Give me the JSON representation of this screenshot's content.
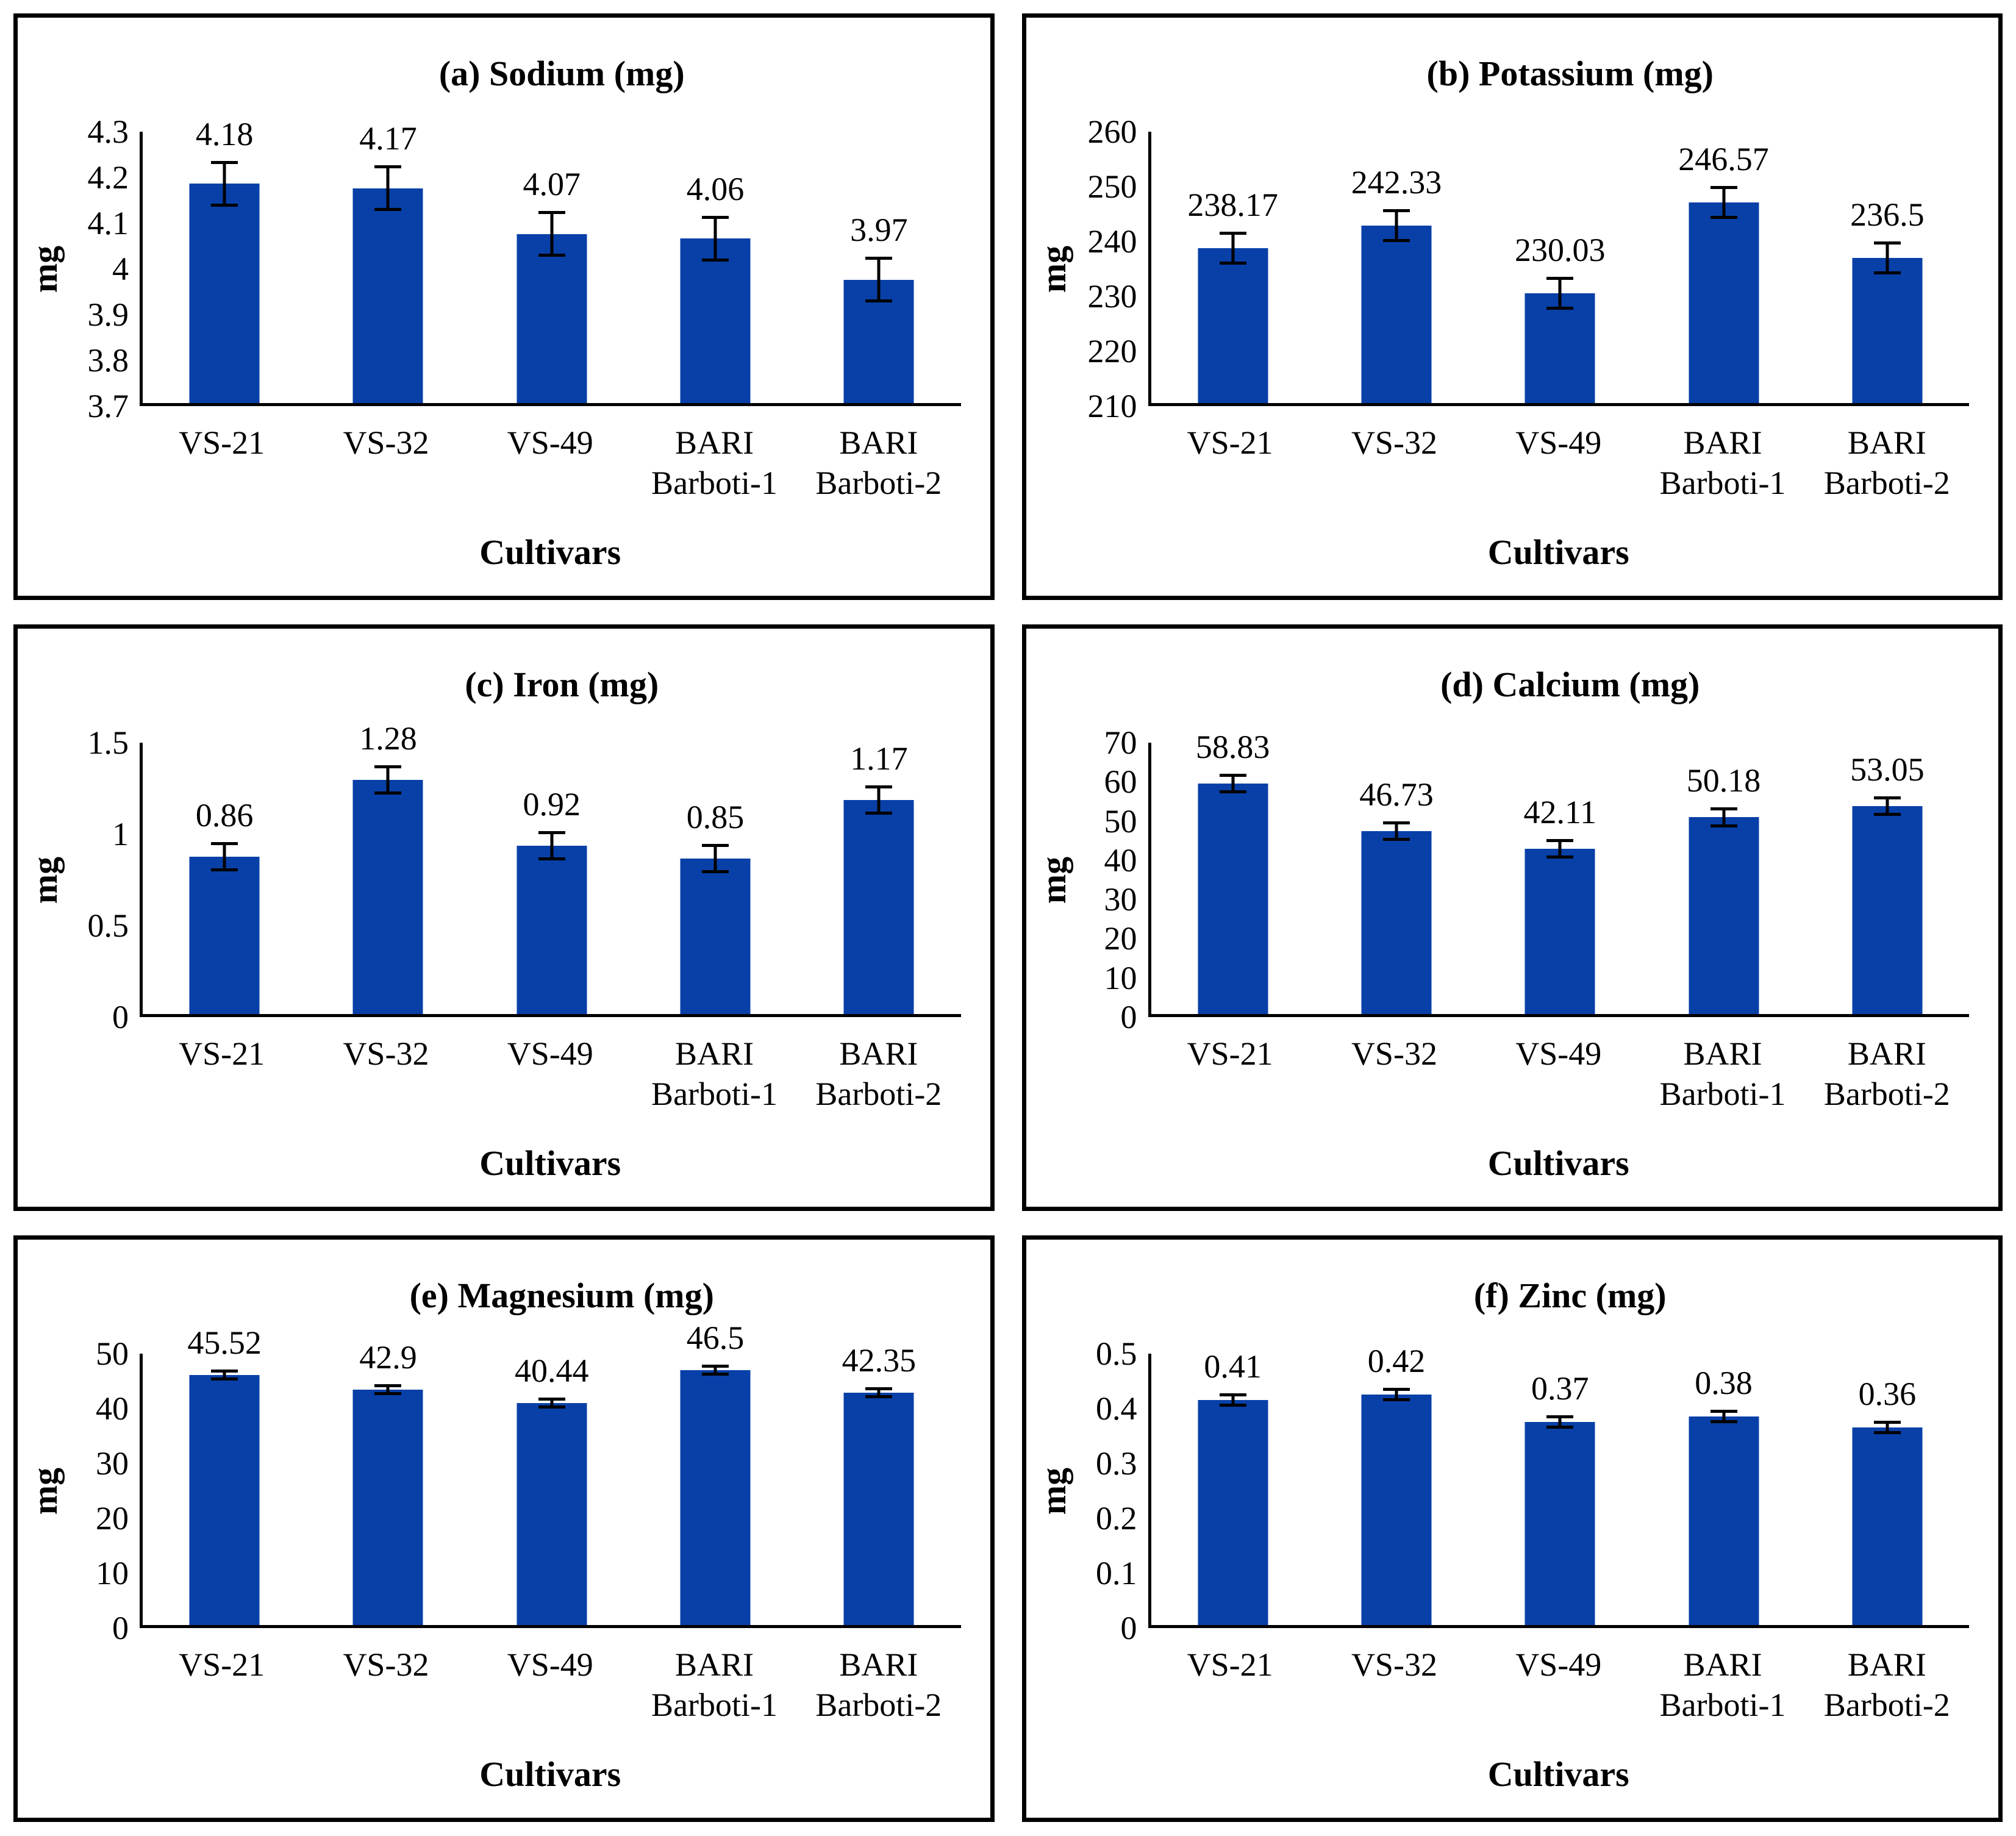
{
  "bar_color": "#0840A8",
  "axis_color": "#000000",
  "text_color": "#000000",
  "panel_border_color": "#000000",
  "chart_data": [
    {
      "type": "bar",
      "panel": "a",
      "title": "(a) Sodium (mg)",
      "ylabel": "mg",
      "xlabel": "Cultivars",
      "categories": [
        "VS-21",
        "VS-32",
        "VS-49",
        "BARI\nBarboti-1",
        "BARI\nBarboti-2"
      ],
      "values": [
        4.18,
        4.17,
        4.07,
        4.06,
        3.97
      ],
      "labels": [
        "4.18",
        "4.17",
        "4.07",
        "4.06",
        "3.97"
      ],
      "error": 0.05,
      "ylim": [
        3.7,
        4.3
      ],
      "yticks": [
        "4.3",
        "4.2",
        "4.1",
        "4",
        "3.9",
        "3.8",
        "3.7"
      ],
      "grid": false,
      "legend": false
    },
    {
      "type": "bar",
      "panel": "b",
      "title": "(b) Potassium (mg)",
      "ylabel": "mg",
      "xlabel": "Cultivars",
      "categories": [
        "VS-21",
        "VS-32",
        "VS-49",
        "BARI\nBarboti-1",
        "BARI\nBarboti-2"
      ],
      "values": [
        238.17,
        242.33,
        230.03,
        246.57,
        236.5
      ],
      "labels": [
        "238.17",
        "242.33",
        "230.03",
        "246.57",
        "236.5"
      ],
      "error": 3,
      "ylim": [
        210,
        260
      ],
      "yticks": [
        "260",
        "250",
        "240",
        "230",
        "220",
        "210"
      ],
      "grid": false,
      "legend": false
    },
    {
      "type": "bar",
      "panel": "c",
      "title": "(c) Iron (mg)",
      "ylabel": "mg",
      "xlabel": "Cultivars",
      "categories": [
        "VS-21",
        "VS-32",
        "VS-49",
        "BARI\nBarboti-1",
        "BARI\nBarboti-2"
      ],
      "values": [
        0.86,
        1.28,
        0.92,
        0.85,
        1.17
      ],
      "labels": [
        "0.86",
        "1.28",
        "0.92",
        "0.85",
        "1.17"
      ],
      "error": 0.08,
      "ylim": [
        0,
        1.5
      ],
      "yticks": [
        "1.5",
        "1",
        "0.5",
        "0"
      ],
      "grid": false,
      "legend": false
    },
    {
      "type": "bar",
      "panel": "d",
      "title": "(d) Calcium (mg)",
      "ylabel": "mg",
      "xlabel": "Cultivars",
      "categories": [
        "VS-21",
        "VS-32",
        "VS-49",
        "BARI\nBarboti-1",
        "BARI\nBarboti-2"
      ],
      "values": [
        58.83,
        46.73,
        42.11,
        50.18,
        53.05
      ],
      "labels": [
        "58.83",
        "46.73",
        "42.11",
        "50.18",
        "53.05"
      ],
      "error": 2.5,
      "ylim": [
        0,
        70
      ],
      "yticks": [
        "70",
        "60",
        "50",
        "40",
        "30",
        "20",
        "10",
        "0"
      ],
      "grid": false,
      "legend": false
    },
    {
      "type": "bar",
      "panel": "e",
      "title": "(e) Magnesium (mg)",
      "ylabel": "mg",
      "xlabel": "Cultivars",
      "categories": [
        "VS-21",
        "VS-32",
        "VS-49",
        "BARI\nBarboti-1",
        "BARI\nBarboti-2"
      ],
      "values": [
        45.52,
        42.9,
        40.44,
        46.5,
        42.35
      ],
      "labels": [
        "45.52",
        "42.9",
        "40.44",
        "46.5",
        "42.35"
      ],
      "error": 1,
      "ylim": [
        0,
        50
      ],
      "yticks": [
        "50",
        "40",
        "30",
        "20",
        "10",
        "0"
      ],
      "grid": false,
      "legend": false
    },
    {
      "type": "bar",
      "panel": "f",
      "title": "(f) Zinc (mg)",
      "ylabel": "mg",
      "xlabel": "Cultivars",
      "categories": [
        "VS-21",
        "VS-32",
        "VS-49",
        "BARI\nBarboti-1",
        "BARI\nBarboti-2"
      ],
      "values": [
        0.41,
        0.42,
        0.37,
        0.38,
        0.36
      ],
      "labels": [
        "0.41",
        "0.42",
        "0.37",
        "0.38",
        "0.36"
      ],
      "error": 0.012,
      "ylim": [
        0,
        0.5
      ],
      "yticks": [
        "0.5",
        "0.4",
        "0.3",
        "0.2",
        "0.1",
        "0"
      ],
      "grid": false,
      "legend": false
    }
  ]
}
